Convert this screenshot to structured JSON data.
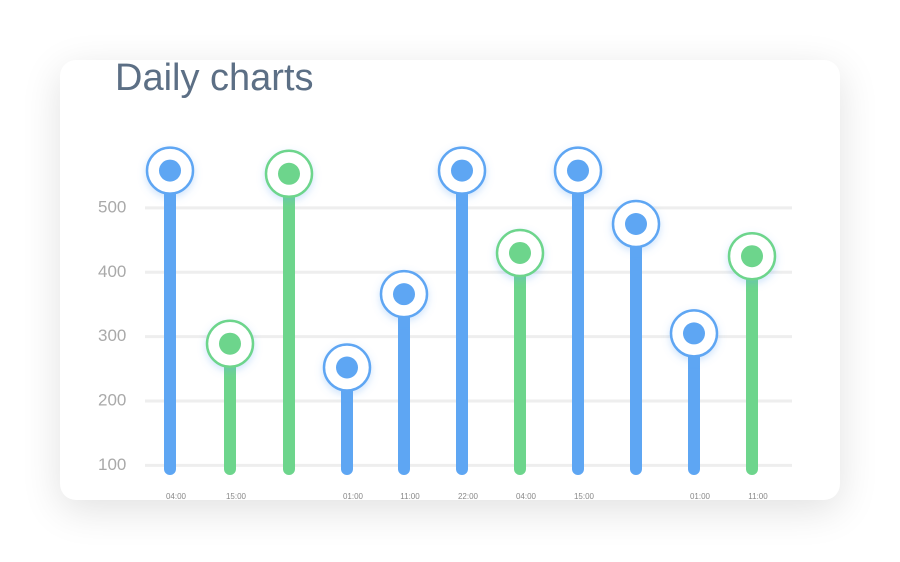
{
  "chart_data": {
    "type": "lollipop",
    "title": "Daily charts",
    "categories": [
      "04:00",
      "15:00",
      null,
      "01:00",
      "11:00",
      "22:00",
      "04:00",
      "15:00",
      null,
      "01:00",
      "11:00"
    ],
    "values": [
      558,
      289,
      553,
      252,
      366,
      558,
      430,
      558,
      475,
      305,
      425
    ],
    "colors": [
      "#5ea6f3",
      "#6dd58c",
      "#6dd58c",
      "#5ea6f3",
      "#5ea6f3",
      "#5ea6f3",
      "#6dd58c",
      "#5ea6f3",
      "#5ea6f3",
      "#5ea6f3",
      "#6dd58c"
    ],
    "ylim": [
      85,
      590
    ],
    "yticks": [
      100,
      200,
      300,
      400,
      500
    ],
    "grid": true
  }
}
